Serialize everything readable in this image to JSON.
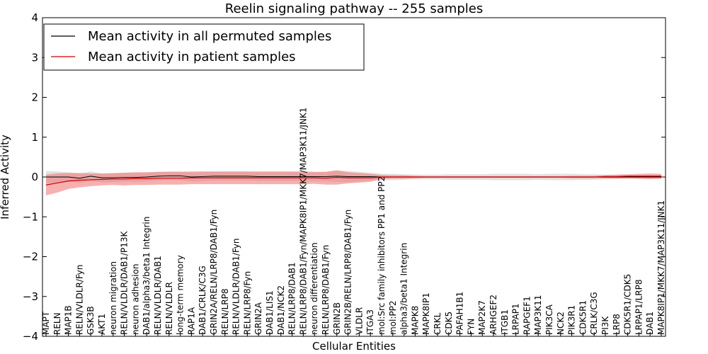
{
  "chart_data": {
    "type": "line",
    "title": "Reelin signaling pathway -- 255 samples",
    "xlabel": "Cellular Entities",
    "ylabel": "Inferred Activity",
    "ylim": [
      -4,
      4
    ],
    "yticks": [
      -4,
      -3,
      -2,
      -1,
      0,
      1,
      2,
      3,
      4
    ],
    "ytick_labels": [
      "−4",
      "−3",
      "−2",
      "−1",
      "0",
      "1",
      "2",
      "3",
      "4"
    ],
    "legend_position": "top-left",
    "categories": [
      "MAPT",
      "RELN",
      "MAP1B",
      "RELN/VLDLR/Fyn",
      "GSK3B",
      "AKT1",
      "neuron migration",
      "RELN/VLDLR/DAB1/P13K",
      "neuron adhesion",
      "DAB1/alpha3/beta1 Integrin",
      "RELN/VLDLR/DAB1",
      "RELN/VLDLR",
      "long-term memory",
      "RAP1A",
      "DAB1/CRLK/C3G",
      "GRIN2A/RELN/LRP8/DAB1/Fyn",
      "RELN/LRP8",
      "RELN/VLDLR/DAB1/Fyn",
      "RELN/LRP8/Fyn",
      "GRIN2A",
      "DAB1/LIS1",
      "DAB1/NCK2",
      "RELN/LRP8/DAB1",
      "RELN/LRP8/DAB1/Fyn/MAPK8IP1/MKK7/MAP3K11/JNK1",
      "neuron differentiation",
      "RELN/LRP8/DAB1/Fyn",
      "GRIN2B",
      "GRIN2B/RELN/LRP8/DAB1/Fyn",
      "VLDLR",
      "ITGA3",
      "mol:Src family inhibitors PP1 and PP2",
      "mol:PP2",
      "alpha3/beta1 Integrin",
      "MAPK8",
      "MAPK8IP1",
      "CRKL",
      "CDK5",
      "PAFAH1B1",
      "FYN",
      "MAP2K7",
      "ARHGEF2",
      "ITGB1",
      "LRPAP1",
      "RAPGEF1",
      "MAP3K11",
      "PIK3CA",
      "NCK2",
      "PIK3R1",
      "CDK5R1",
      "CRLK/C3G",
      "PI3K",
      "LRP8",
      "CDK5R1/CDK5",
      "LRPAP1/LRP8",
      "DAB1",
      "MAPK8IP1/MKK7/MAP3K11/JNK1"
    ],
    "series": [
      {
        "name": "Mean activity in all permuted samples",
        "color": "#000000",
        "band_color": "#aaaaaa",
        "values": [
          0.0,
          0.0,
          0.0,
          -0.03,
          0.02,
          -0.02,
          -0.02,
          -0.01,
          -0.01,
          0.0,
          0.02,
          0.03,
          0.03,
          0.0,
          0.01,
          0.02,
          0.02,
          0.02,
          0.02,
          0.01,
          0.01,
          0.01,
          0.01,
          0.01,
          0.01,
          0.01,
          0.02,
          0.01,
          0.01,
          0.01,
          0.0,
          0.0,
          0.0,
          0.0,
          0.0,
          0.0,
          0.0,
          0.0,
          0.0,
          0.0,
          0.0,
          0.0,
          0.0,
          0.0,
          0.0,
          0.0,
          0.0,
          0.0,
          0.0,
          0.0,
          0.0,
          0.0,
          0.0,
          0.0,
          0.0,
          0.0
        ],
        "band": [
          0.15,
          0.14,
          0.12,
          0.12,
          0.12,
          0.11,
          0.11,
          0.11,
          0.11,
          0.11,
          0.11,
          0.11,
          0.11,
          0.11,
          0.11,
          0.11,
          0.11,
          0.11,
          0.11,
          0.11,
          0.11,
          0.11,
          0.11,
          0.11,
          0.11,
          0.12,
          0.14,
          0.14,
          0.12,
          0.1,
          0.08,
          0.08,
          0.07,
          0.06,
          0.06,
          0.06,
          0.07,
          0.07,
          0.07,
          0.07,
          0.08,
          0.08,
          0.08,
          0.08,
          0.07,
          0.08,
          0.08,
          0.08,
          0.07,
          0.07,
          0.06,
          0.05,
          0.05,
          0.05,
          0.05,
          0.05
        ]
      },
      {
        "name": "Mean activity in patient samples",
        "color": "#cc0000",
        "band_color": "#f07070",
        "values": [
          -0.2,
          -0.15,
          -0.1,
          -0.08,
          -0.07,
          -0.06,
          -0.05,
          -0.05,
          -0.04,
          -0.04,
          -0.03,
          -0.03,
          -0.03,
          -0.02,
          -0.02,
          -0.02,
          -0.02,
          -0.02,
          -0.02,
          -0.02,
          -0.02,
          -0.02,
          -0.02,
          -0.02,
          -0.02,
          -0.03,
          -0.01,
          -0.02,
          -0.02,
          -0.02,
          0.0,
          0.0,
          0.0,
          0.0,
          0.0,
          0.0,
          0.0,
          0.0,
          0.0,
          0.0,
          0.0,
          0.0,
          0.0,
          0.0,
          0.0,
          0.0,
          0.0,
          0.0,
          0.0,
          0.0,
          0.01,
          0.01,
          0.02,
          0.02,
          0.02,
          0.02
        ],
        "band": [
          0.26,
          0.24,
          0.2,
          0.18,
          0.16,
          0.15,
          0.15,
          0.16,
          0.16,
          0.16,
          0.16,
          0.16,
          0.16,
          0.16,
          0.16,
          0.16,
          0.16,
          0.16,
          0.16,
          0.16,
          0.16,
          0.16,
          0.16,
          0.16,
          0.15,
          0.16,
          0.18,
          0.14,
          0.12,
          0.1,
          0.05,
          0.04,
          0.04,
          0.03,
          0.02,
          0.02,
          0.02,
          0.02,
          0.02,
          0.02,
          0.02,
          0.02,
          0.02,
          0.02,
          0.02,
          0.02,
          0.02,
          0.03,
          0.03,
          0.03,
          0.04,
          0.05,
          0.05,
          0.06,
          0.07,
          0.06
        ]
      }
    ]
  }
}
